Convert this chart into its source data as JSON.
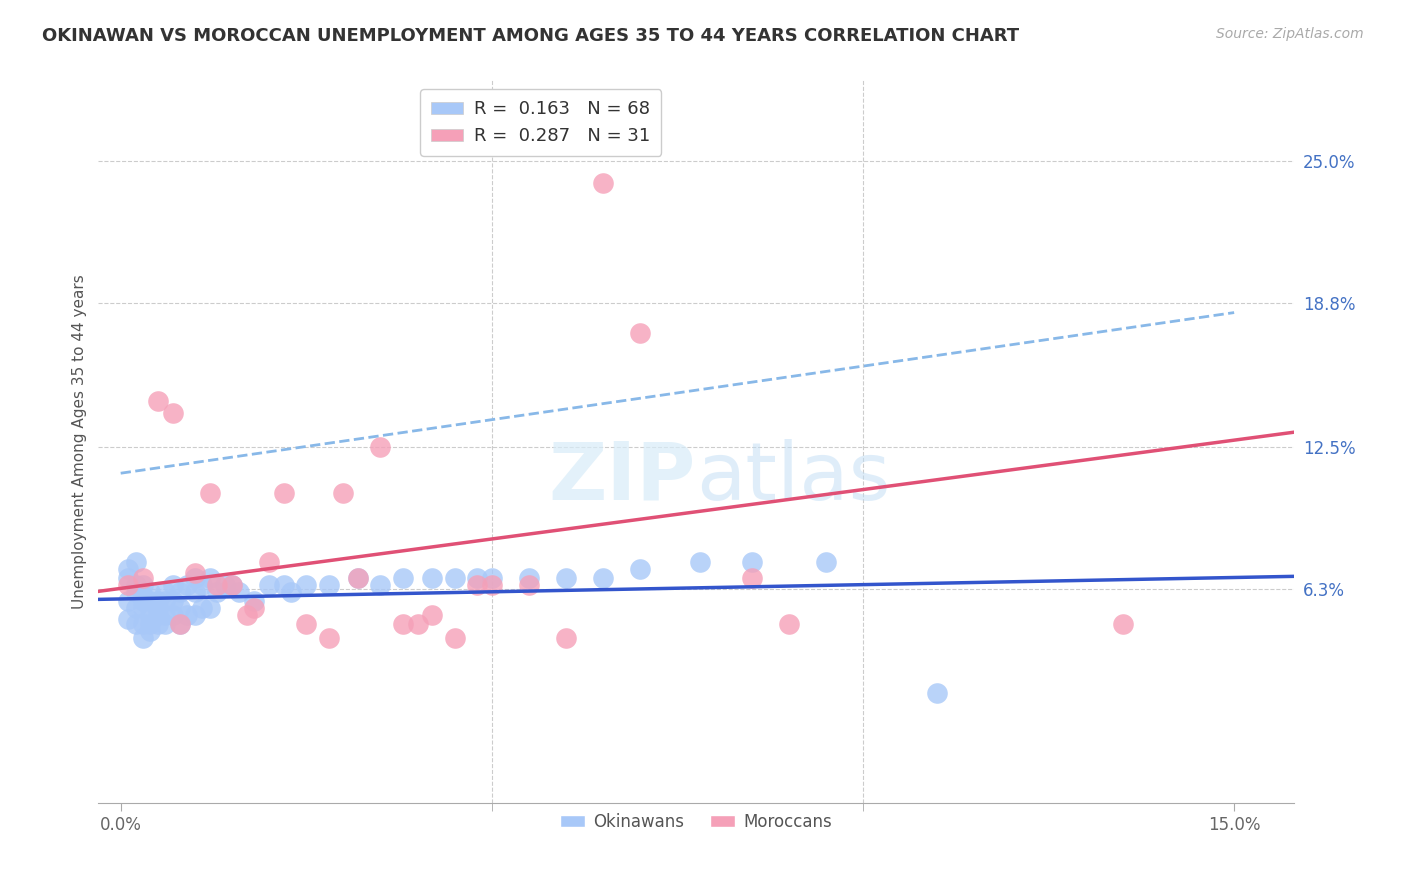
{
  "title": "OKINAWAN VS MOROCCAN UNEMPLOYMENT AMONG AGES 35 TO 44 YEARS CORRELATION CHART",
  "source": "Source: ZipAtlas.com",
  "ylabel": "Unemployment Among Ages 35 to 44 years",
  "xlabel_okinawan": "Okinawans",
  "xlabel_moroccan": "Moroccans",
  "okinawan_color": "#a8c8f8",
  "moroccan_color": "#f5a0b8",
  "okinawan_line_color": "#3355cc",
  "moroccan_line_color": "#e05075",
  "okinawan_dashed_color": "#88b8e8",
  "watermark_color": "#d8ecf8",
  "tick_color_right": "#4472c4",
  "tick_color_bottom": "#666666",
  "grid_color": "#cccccc",
  "title_fontsize": 13,
  "label_fontsize": 11,
  "tick_fontsize": 12,
  "legend_fontsize": 13,
  "ok_R": 0.163,
  "ok_N": 68,
  "mo_R": 0.287,
  "mo_N": 31,
  "okinawan_x": [
    0.001,
    0.001,
    0.001,
    0.001,
    0.002,
    0.002,
    0.002,
    0.002,
    0.002,
    0.003,
    0.003,
    0.003,
    0.003,
    0.003,
    0.003,
    0.004,
    0.004,
    0.004,
    0.004,
    0.004,
    0.005,
    0.005,
    0.005,
    0.005,
    0.006,
    0.006,
    0.006,
    0.006,
    0.007,
    0.007,
    0.007,
    0.008,
    0.008,
    0.008,
    0.009,
    0.009,
    0.01,
    0.01,
    0.01,
    0.011,
    0.011,
    0.012,
    0.012,
    0.013,
    0.014,
    0.015,
    0.016,
    0.018,
    0.02,
    0.022,
    0.023,
    0.025,
    0.028,
    0.032,
    0.035,
    0.038,
    0.042,
    0.045,
    0.048,
    0.05,
    0.055,
    0.06,
    0.065,
    0.07,
    0.078,
    0.085,
    0.095,
    0.11
  ],
  "okinawan_y": [
    0.068,
    0.072,
    0.058,
    0.05,
    0.062,
    0.065,
    0.075,
    0.055,
    0.048,
    0.065,
    0.06,
    0.058,
    0.055,
    0.048,
    0.042,
    0.062,
    0.058,
    0.052,
    0.048,
    0.045,
    0.058,
    0.055,
    0.052,
    0.048,
    0.062,
    0.058,
    0.052,
    0.048,
    0.065,
    0.058,
    0.052,
    0.062,
    0.055,
    0.048,
    0.065,
    0.052,
    0.068,
    0.062,
    0.052,
    0.065,
    0.055,
    0.068,
    0.055,
    0.062,
    0.065,
    0.065,
    0.062,
    0.058,
    0.065,
    0.065,
    0.062,
    0.065,
    0.065,
    0.068,
    0.065,
    0.068,
    0.068,
    0.068,
    0.068,
    0.068,
    0.068,
    0.068,
    0.068,
    0.072,
    0.075,
    0.075,
    0.075,
    0.018
  ],
  "moroccan_x": [
    0.001,
    0.003,
    0.005,
    0.007,
    0.008,
    0.01,
    0.012,
    0.013,
    0.015,
    0.017,
    0.018,
    0.02,
    0.022,
    0.025,
    0.028,
    0.03,
    0.032,
    0.035,
    0.038,
    0.04,
    0.042,
    0.045,
    0.048,
    0.05,
    0.055,
    0.06,
    0.065,
    0.07,
    0.085,
    0.09,
    0.135
  ],
  "moroccan_y": [
    0.065,
    0.068,
    0.145,
    0.14,
    0.048,
    0.07,
    0.105,
    0.065,
    0.065,
    0.052,
    0.055,
    0.075,
    0.105,
    0.048,
    0.042,
    0.105,
    0.068,
    0.125,
    0.048,
    0.048,
    0.052,
    0.042,
    0.065,
    0.065,
    0.065,
    0.042,
    0.24,
    0.175,
    0.068,
    0.048,
    0.048
  ],
  "xlim_lo": -0.003,
  "xlim_hi": 0.158,
  "ylim_lo": -0.03,
  "ylim_hi": 0.285,
  "ytick_vals": [
    0.063,
    0.125,
    0.188,
    0.25
  ],
  "ytick_labels": [
    "6.3%",
    "12.5%",
    "18.8%",
    "25.0%"
  ],
  "xgrid_vals": [
    0.05,
    0.1
  ],
  "xtick_show": [
    0.0,
    0.15
  ],
  "xtick_labels": [
    "0.0%",
    "15.0%"
  ]
}
